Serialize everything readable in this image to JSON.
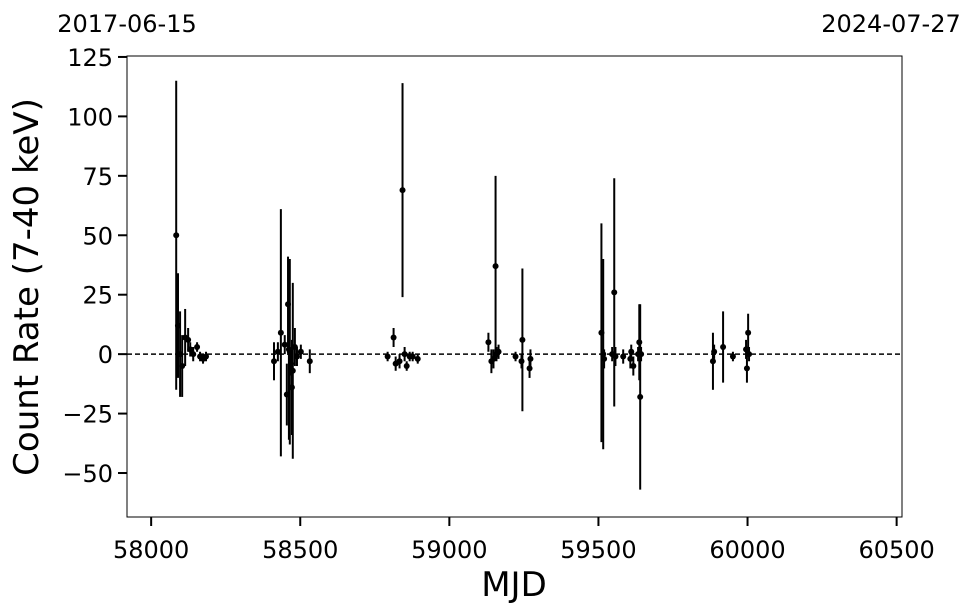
{
  "chart_data": {
    "type": "errorbar",
    "xlabel": "MJD",
    "ylabel": "Count Rate (7-40 keV)",
    "top_labels": [
      {
        "value": 57919,
        "label": "2017-06-15"
      },
      {
        "value": 60518,
        "label": "2024-07-27"
      }
    ],
    "xlim": [
      57919,
      60518
    ],
    "ylim": [
      -68.5,
      125.4
    ],
    "xticks": [
      58000,
      58500,
      59000,
      59500,
      60000,
      60500
    ],
    "yticks": [
      {
        "value": -50,
        "label": "−50"
      },
      {
        "value": -25,
        "label": "−25"
      },
      0,
      25,
      50,
      75,
      100,
      125
    ],
    "hline": 0,
    "color": "#000000",
    "x": [
      58084,
      58090,
      58097,
      58104,
      58114,
      58124,
      58131,
      58141,
      58154,
      58164,
      58174,
      58184,
      58412,
      58425,
      58435,
      58448,
      58455,
      58459,
      58462,
      58465,
      58469,
      58472,
      58475,
      58482,
      58489,
      58502,
      58532,
      58793,
      58813,
      58820,
      58833,
      58843,
      58850,
      58857,
      58867,
      58877,
      58894,
      59131,
      59141,
      59148,
      59155,
      59158,
      59165,
      59222,
      59242,
      59245,
      59269,
      59272,
      59510,
      59516,
      59519,
      59546,
      59553,
      59557,
      59583,
      59607,
      59610,
      59617,
      59633,
      59637,
      59640,
      59643,
      59884,
      59888,
      59918,
      59951,
      59995,
      59998,
      60002,
      60005
    ],
    "y": [
      50,
      12,
      0,
      -5,
      7,
      6,
      2,
      0,
      3,
      -1,
      -2,
      -1,
      -3,
      1,
      9,
      4,
      -17,
      21,
      2,
      1,
      -4,
      -14,
      -7,
      3,
      -1,
      1,
      -3,
      -1,
      7,
      -4,
      -3,
      69,
      0,
      -5,
      -1,
      -1,
      -2,
      5,
      -3,
      -2,
      37,
      0,
      1,
      -1,
      -3,
      6,
      -6,
      -2,
      9,
      0,
      -2,
      0,
      26,
      -1,
      -1,
      -2,
      1,
      -5,
      0,
      5,
      -18,
      0,
      -3,
      1,
      3,
      -1,
      2,
      -6,
      9,
      0
    ],
    "yerr": [
      65,
      22,
      18,
      13,
      12,
      5,
      3,
      3,
      2,
      2,
      2,
      2,
      8,
      4,
      52,
      4,
      13,
      20,
      38,
      39,
      5,
      20,
      37,
      8,
      4,
      3,
      5,
      2,
      4,
      3,
      3,
      45,
      3,
      2,
      2,
      2,
      2,
      4,
      5,
      4,
      38,
      3,
      3,
      2,
      3,
      30,
      4,
      4,
      46,
      40,
      4,
      3,
      48,
      4,
      3,
      4,
      3,
      4,
      3,
      16,
      39,
      3,
      12,
      3,
      15,
      2,
      4,
      6,
      8,
      3
    ]
  }
}
